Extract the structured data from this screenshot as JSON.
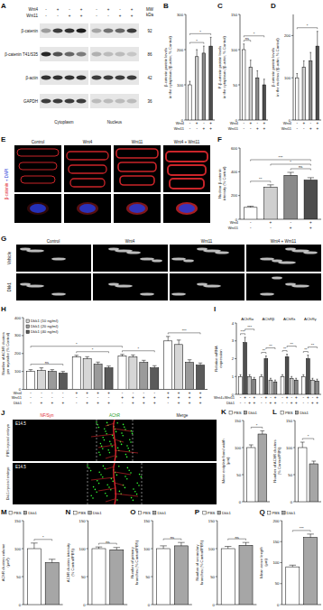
{
  "chart_data": [
    {
      "type": "bar",
      "title": "B",
      "ylabel": [
        "β-catenin protein levels",
        "in the cytoplasm (/β-actin; % Control)"
      ],
      "categories": [
        null,
        null,
        null,
        null
      ],
      "values": [
        100,
        180,
        190,
        210
      ],
      "errors": [
        10,
        20,
        20,
        25
      ],
      "colors": [
        "#ffffff",
        "#cfcfcf",
        "#8a8a8a",
        "#4d4d4d"
      ],
      "ylim": [
        0,
        300
      ],
      "yticks": [
        0,
        100,
        200,
        300
      ],
      "conditions": [
        {
          "name": "Wnt4",
          "signs": [
            "-",
            "+",
            "-",
            "+"
          ]
        },
        {
          "name": "Wnt11",
          "signs": [
            "-",
            "-",
            "+",
            "+"
          ]
        }
      ],
      "annotations": [
        {
          "text": "*",
          "from": 0,
          "to": 2
        },
        {
          "text": "*",
          "from": 0,
          "to": 3
        }
      ]
    },
    {
      "type": "bar",
      "title": "C",
      "ylabel": [
        "P-β-catenin protein levels",
        "in the cytoplasm (/β-actin; % Control)"
      ],
      "categories": [
        null,
        null,
        null,
        null
      ],
      "values": [
        100,
        75,
        60,
        50
      ],
      "errors": [
        8,
        10,
        10,
        8
      ],
      "colors": [
        "#ffffff",
        "#cfcfcf",
        "#8a8a8a",
        "#4d4d4d"
      ],
      "ylim": [
        0,
        150
      ],
      "yticks": [
        0,
        50,
        100,
        150
      ],
      "conditions": [
        {
          "name": "Wnt4",
          "signs": [
            "-",
            "+",
            "-",
            "+"
          ]
        },
        {
          "name": "Wnt11",
          "signs": [
            "-",
            "-",
            "+",
            "+"
          ]
        }
      ],
      "annotations": [
        {
          "text": "ns",
          "from": 0,
          "to": 1
        },
        {
          "text": "*",
          "from": 0,
          "to": 3
        }
      ]
    },
    {
      "type": "bar",
      "title": "D",
      "ylabel": [
        "β-catenin protein levels",
        "in the nucleus (/β-actin; % Control)"
      ],
      "categories": [
        null,
        null,
        null,
        null
      ],
      "values": [
        100,
        125,
        140,
        175
      ],
      "errors": [
        10,
        15,
        20,
        35
      ],
      "colors": [
        "#ffffff",
        "#cfcfcf",
        "#8a8a8a",
        "#4d4d4d"
      ],
      "ylim": [
        0,
        250
      ],
      "yticks": [
        0,
        100,
        200
      ],
      "conditions": [
        {
          "name": "Wnt4",
          "signs": [
            "-",
            "+",
            "-",
            "+"
          ]
        },
        {
          "name": "Wnt11",
          "signs": [
            "-",
            "-",
            "+",
            "+"
          ]
        }
      ],
      "annotations": [
        {
          "text": "*",
          "from": 0,
          "to": 3
        }
      ]
    },
    {
      "type": "bar",
      "title": "F",
      "ylabel": [
        "Nuclear β-catenin",
        "intensity (% Control)"
      ],
      "categories": [
        null,
        null,
        null,
        null
      ],
      "values": [
        100,
        270,
        370,
        330
      ],
      "errors": [
        10,
        20,
        25,
        20
      ],
      "colors": [
        "#ffffff",
        "#cfcfcf",
        "#8a8a8a",
        "#4d4d4d"
      ],
      "ylim": [
        0,
        600
      ],
      "yticks": [
        0,
        200,
        400,
        600
      ],
      "conditions": [
        {
          "name": "Wnt4",
          "signs": [
            "-",
            "+",
            "-",
            "+"
          ]
        },
        {
          "name": "Wnt11",
          "signs": [
            "-",
            "-",
            "+",
            "+"
          ]
        }
      ],
      "annotations": [
        {
          "text": "**",
          "from": 0,
          "to": 1
        },
        {
          "text": "ns",
          "from": 2,
          "to": 3
        },
        {
          "text": "*",
          "from": 1,
          "to": 3
        },
        {
          "text": "***",
          "from": 0,
          "to": 3
        }
      ]
    },
    {
      "type": "bar",
      "title": "H",
      "ylabel": [
        "Number of AChR clusters",
        "per myotube (% Control)"
      ],
      "categories": [
        null,
        null,
        null,
        null
      ],
      "series": [
        {
          "color": "#ffffff",
          "values": [
            100,
            180,
            185,
            270
          ],
          "errors": [
            10,
            10,
            10,
            25
          ]
        },
        {
          "name": "Dkk1 (10 ng/ml)",
          "color": "#d6d6d6",
          "values": [
            105,
            170,
            180,
            250
          ],
          "errors": [
            15,
            12,
            12,
            25
          ]
        },
        {
          "name": "Dkk1 (20 ng/ml)",
          "color": "#9a9a9a",
          "values": [
            100,
            140,
            150,
            150
          ],
          "errors": [
            10,
            12,
            12,
            15
          ]
        },
        {
          "name": "Dkk1 (40 ng/ml)",
          "color": "#5a5a5a",
          "values": [
            90,
            120,
            120,
            135
          ],
          "errors": [
            10,
            10,
            12,
            12
          ]
        }
      ],
      "ylim": [
        0,
        400
      ],
      "yticks": [
        0,
        100,
        200,
        300,
        400
      ],
      "legend": "top-left",
      "conditions": [
        {
          "name": "Wnt4",
          "signs": [
            "-",
            "-",
            "-",
            "-",
            "+",
            "+",
            "+",
            "+",
            "-",
            "-",
            "-",
            "-",
            "+",
            "+",
            "+",
            "+"
          ]
        },
        {
          "name": "Wnt11",
          "signs": [
            "-",
            "-",
            "-",
            "-",
            "-",
            "-",
            "-",
            "-",
            "+",
            "+",
            "+",
            "+",
            "+",
            "+",
            "+",
            "+"
          ]
        },
        {
          "name": "Dkk1",
          "signs": [
            "-",
            "+",
            "+",
            "+",
            "-",
            "+",
            "+",
            "+",
            "-",
            "+",
            "+",
            "+",
            "-",
            "+",
            "+",
            "+"
          ]
        }
      ],
      "annotations": [
        {
          "text": "ns",
          "from": 0,
          "to": 3
        },
        {
          "text": "*",
          "from": 4,
          "to": 7
        },
        {
          "text": "*",
          "from": 8,
          "to": 11
        },
        {
          "text": "***",
          "from": 12,
          "to": 15
        },
        {
          "text": "*",
          "from": 0,
          "to": 8
        }
      ]
    },
    {
      "type": "bar",
      "title": "I",
      "ylabel": [
        "Relative mRNA",
        "expression"
      ],
      "categories": [
        "AChRα",
        "AChRβ",
        "AChRε",
        "AChRγ"
      ],
      "series": [
        {
          "color": "#ffffff",
          "values": [
            1,
            1,
            1,
            1
          ],
          "errors": [
            0.1,
            0.1,
            0.1,
            0.1
          ]
        },
        {
          "color": "#505050",
          "values": [
            2.9,
            2.0,
            2.1,
            2.0
          ],
          "errors": [
            0.3,
            0.15,
            0.15,
            0.2
          ]
        },
        {
          "color": "#c4c4c4",
          "values": [
            1.0,
            0.8,
            0.9,
            0.8
          ],
          "errors": [
            0.1,
            0.1,
            0.1,
            0.1
          ]
        },
        {
          "color": "#858585",
          "values": [
            0.85,
            0.7,
            0.8,
            0.75
          ],
          "errors": [
            0.1,
            0.1,
            0.1,
            0.1
          ]
        }
      ],
      "ylim": [
        0,
        4
      ],
      "yticks": [
        0,
        1,
        2,
        3,
        4
      ],
      "conditions": [
        {
          "name": "Wnt4+Wnt11",
          "signs": [
            "-",
            "+",
            "-",
            "+",
            "-",
            "+",
            "-",
            "+",
            "-",
            "+",
            "-",
            "+",
            "-",
            "+",
            "-",
            "+"
          ]
        },
        {
          "name": "Dkk1",
          "signs": [
            "-",
            "-",
            "+",
            "+",
            "-",
            "-",
            "+",
            "+",
            "-",
            "-",
            "+",
            "+",
            "-",
            "-",
            "+",
            "+"
          ]
        }
      ],
      "annotations": [
        {
          "text": "***",
          "from": 0,
          "to": 1
        },
        {
          "text": "***",
          "from": 1,
          "to": 3
        },
        {
          "text": "**",
          "from": 4,
          "to": 5
        },
        {
          "text": "**",
          "from": 5,
          "to": 7
        },
        {
          "text": "**",
          "from": 8,
          "to": 9
        },
        {
          "text": "**",
          "from": 9,
          "to": 11
        },
        {
          "text": "**",
          "from": 12,
          "to": 13
        },
        {
          "text": "**",
          "from": 13,
          "to": 15
        }
      ]
    },
    {
      "type": "bar",
      "title": "K",
      "ylabel": [
        "Mean endplate band width",
        "(μm)"
      ],
      "categories": [
        null
      ],
      "series": [
        {
          "name": "PBS",
          "color": "#ffffff",
          "values": [
            100
          ],
          "errors": [
            5
          ]
        },
        {
          "name": "Dkk1",
          "color": "#a6a6a6",
          "values": [
            125
          ],
          "errors": [
            6
          ]
        }
      ],
      "ylim": [
        0,
        150
      ],
      "yticks": [
        0,
        50,
        100,
        150
      ],
      "legend": "top",
      "annotations": [
        {
          "text": "*",
          "from": 0,
          "to": 1
        }
      ]
    },
    {
      "type": "bar",
      "title": "L",
      "ylabel": [
        "Number of AChR clusters",
        "(% Control/PBS)"
      ],
      "categories": [
        null
      ],
      "series": [
        {
          "name": "PBS",
          "color": "#ffffff",
          "values": [
            100
          ],
          "errors": [
            10
          ]
        },
        {
          "name": "Dkk1",
          "color": "#a6a6a6",
          "values": [
            70
          ],
          "errors": [
            5
          ]
        }
      ],
      "ylim": [
        0,
        150
      ],
      "yticks": [
        0,
        50,
        100,
        150
      ],
      "legend": "top",
      "annotations": [
        {
          "text": "*",
          "from": 0,
          "to": 1
        }
      ]
    },
    {
      "type": "bar",
      "title": "M",
      "ylabel": [
        "AChR clusters volume",
        "(μm³)"
      ],
      "categories": [
        null
      ],
      "series": [
        {
          "name": "PBS",
          "color": "#ffffff",
          "values": [
            100
          ],
          "errors": [
            10
          ]
        },
        {
          "name": "Dkk1",
          "color": "#a6a6a6",
          "values": [
            75
          ],
          "errors": [
            6
          ]
        }
      ],
      "ylim": [
        0,
        150
      ],
      "yticks": [
        0,
        50,
        100,
        150
      ],
      "legend": "top",
      "annotations": [
        {
          "text": "*",
          "from": 0,
          "to": 1
        }
      ]
    },
    {
      "type": "bar",
      "title": "N",
      "ylabel": [
        "AChR clusters intensity",
        "(% Control/PBS)"
      ],
      "categories": [
        null
      ],
      "series": [
        {
          "name": "PBS",
          "color": "#ffffff",
          "values": [
            100
          ],
          "errors": [
            3
          ]
        },
        {
          "name": "Dkk1",
          "color": "#a6a6a6",
          "values": [
            98
          ],
          "errors": [
            4
          ]
        }
      ],
      "ylim": [
        0,
        150
      ],
      "yticks": [
        0,
        50,
        100,
        150
      ],
      "legend": "top",
      "annotations": [
        {
          "text": "ns",
          "from": 0,
          "to": 1
        }
      ]
    },
    {
      "type": "bar",
      "title": "O",
      "ylabel": [
        "Number of primary",
        "branches (% Control/PBS)"
      ],
      "categories": [
        null
      ],
      "series": [
        {
          "name": "PBS",
          "color": "#ffffff",
          "values": [
            100
          ],
          "errors": [
            5
          ]
        },
        {
          "name": "Dkk1",
          "color": "#a6a6a6",
          "values": [
            105
          ],
          "errors": [
            6
          ]
        }
      ],
      "ylim": [
        0,
        150
      ],
      "yticks": [
        0,
        50,
        100,
        150
      ],
      "legend": "top",
      "annotations": [
        {
          "text": "ns",
          "from": 0,
          "to": 1
        }
      ]
    },
    {
      "type": "bar",
      "title": "P",
      "ylabel": [
        "Number of secondary",
        "branches (% Control/PBS)"
      ],
      "categories": [
        null
      ],
      "series": [
        {
          "name": "PBS",
          "color": "#ffffff",
          "values": [
            100
          ],
          "errors": [
            4
          ]
        },
        {
          "name": "Dkk1",
          "color": "#a6a6a6",
          "values": [
            106
          ],
          "errors": [
            5
          ]
        }
      ],
      "ylim": [
        0,
        150
      ],
      "yticks": [
        0,
        50,
        100,
        150
      ],
      "legend": "top",
      "annotations": [
        {
          "text": "ns",
          "from": 0,
          "to": 1
        }
      ]
    },
    {
      "type": "bar",
      "title": "Q",
      "ylabel": [
        "Mean nerve length",
        "(μm)"
      ],
      "categories": [
        null
      ],
      "series": [
        {
          "name": "PBS",
          "color": "#ffffff",
          "values": [
            90
          ],
          "errors": [
            4
          ]
        },
        {
          "name": "Dkk1",
          "color": "#a6a6a6",
          "values": [
            160
          ],
          "errors": [
            8
          ]
        }
      ],
      "ylim": [
        0,
        200
      ],
      "yticks": [
        0,
        50,
        100,
        150,
        200
      ],
      "legend": "top",
      "annotations": [
        {
          "text": "***",
          "from": 0,
          "to": 1
        }
      ]
    }
  ],
  "figure": {
    "A": {
      "title": "A",
      "rows": [
        {
          "label": "Wnt4",
          "signs": [
            "-",
            "+",
            "-",
            "+",
            "-",
            "+",
            "-",
            "+"
          ]
        },
        {
          "label": "Wnt11",
          "signs": [
            "-",
            "-",
            "+",
            "+",
            "-",
            "-",
            "+",
            "+"
          ]
        }
      ],
      "mw_header": [
        "MW",
        "kDa"
      ],
      "bands": [
        {
          "label": "β-catenin",
          "mw": 92
        },
        {
          "label": "β-catenin T41/S35",
          "mw": 86
        },
        {
          "label": "β-actin",
          "mw": 42
        },
        {
          "label": "GAPDH",
          "mw": 36
        }
      ],
      "fractions": [
        "Cytoplasm",
        "Nucleus"
      ]
    },
    "E": {
      "title": "E",
      "columns": [
        "Control",
        "Wnt4",
        "Wnt11",
        "Wnt4 + Wnt11"
      ],
      "stain": [
        "β-catenin",
        "+ DAPI"
      ]
    },
    "G": {
      "title": "G",
      "columns": [
        "Control",
        "Wnt4",
        "Wnt11",
        "Wnt4 + Wnt11"
      ],
      "rows": [
        "Vehicle",
        "Dkk1"
      ]
    },
    "J": {
      "title": "J",
      "channels": [
        "NF/Syn",
        "AChR",
        "Merge"
      ],
      "rows": [
        {
          "age": "E14.5",
          "label": "PBS-injected embryo"
        },
        {
          "age": "E14.5",
          "label": "Dkk1-injected embryo"
        }
      ]
    }
  }
}
